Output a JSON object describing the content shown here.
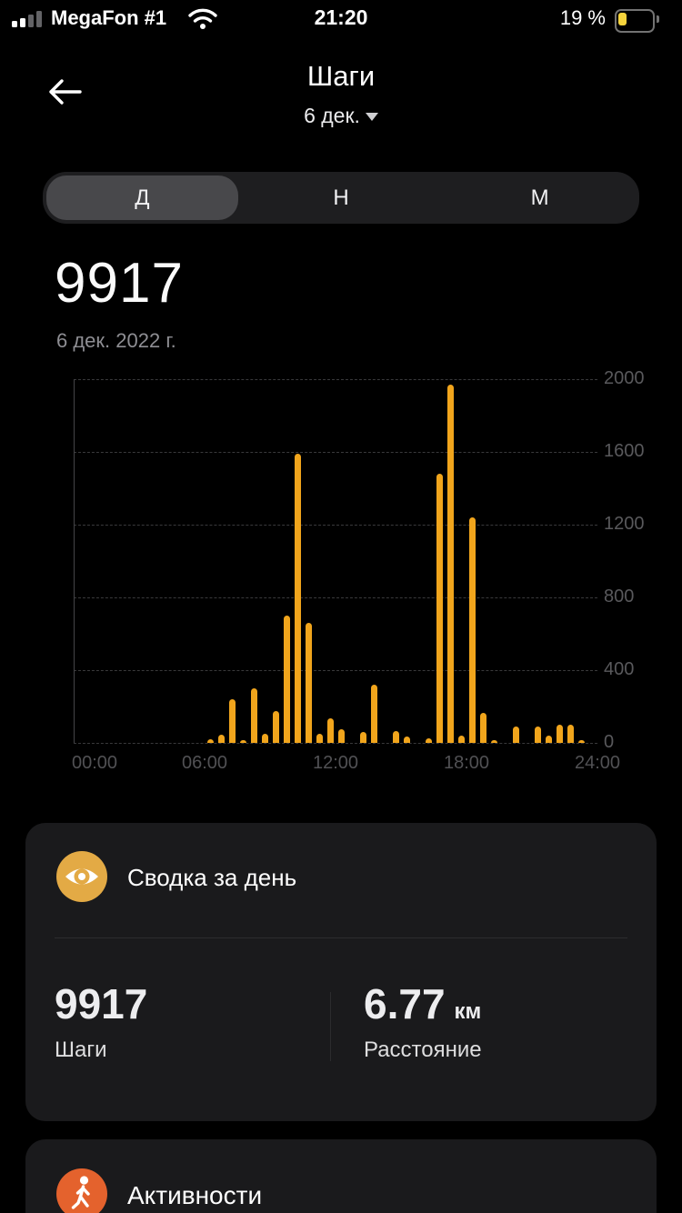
{
  "status_bar": {
    "carrier": "MegaFon #1",
    "time": "21:20",
    "battery_percent": "19 %",
    "signal_icon": "cellular-signal-2-of-4",
    "wifi_icon": "wifi-full",
    "battery_icon": "battery-low",
    "battery_fill_color": "#F5D33C"
  },
  "header": {
    "back_icon": "back-arrow",
    "title": "Шаги",
    "date_selector": "6 дек.",
    "caret_icon": "chevron-down"
  },
  "period_tabs": {
    "options": [
      {
        "label": "Д",
        "selected": true
      },
      {
        "label": "Н",
        "selected": false
      },
      {
        "label": "М",
        "selected": false
      }
    ]
  },
  "summary_top": {
    "steps": "9917",
    "date": "6 дек. 2022 г."
  },
  "chart_data": {
    "type": "bar",
    "title": "Шаги за день (steps per 30-min interval)",
    "bar_color": "#F1A51C",
    "x_axis": {
      "ticks": [
        "00:00",
        "06:00",
        "12:00",
        "18:00",
        "24:00"
      ],
      "range_hours": [
        0,
        24
      ]
    },
    "y_axis": {
      "ticks": [
        2000,
        1600,
        1200,
        800,
        400,
        0
      ],
      "lim": [
        0,
        2000
      ],
      "grid": "dashed"
    },
    "bars": [
      {
        "hour": 6.0,
        "steps": 20
      },
      {
        "hour": 6.5,
        "steps": 45
      },
      {
        "hour": 7.0,
        "steps": 240
      },
      {
        "hour": 7.5,
        "steps": 15
      },
      {
        "hour": 8.0,
        "steps": 300
      },
      {
        "hour": 8.5,
        "steps": 50
      },
      {
        "hour": 9.0,
        "steps": 175
      },
      {
        "hour": 9.5,
        "steps": 700
      },
      {
        "hour": 10.0,
        "steps": 1590
      },
      {
        "hour": 10.5,
        "steps": 660
      },
      {
        "hour": 11.0,
        "steps": 50
      },
      {
        "hour": 11.5,
        "steps": 135
      },
      {
        "hour": 12.0,
        "steps": 75
      },
      {
        "hour": 13.0,
        "steps": 60
      },
      {
        "hour": 13.5,
        "steps": 320
      },
      {
        "hour": 14.5,
        "steps": 65
      },
      {
        "hour": 15.0,
        "steps": 35
      },
      {
        "hour": 16.0,
        "steps": 25
      },
      {
        "hour": 16.5,
        "steps": 1480
      },
      {
        "hour": 17.0,
        "steps": 1970
      },
      {
        "hour": 17.5,
        "steps": 40
      },
      {
        "hour": 18.0,
        "steps": 1240
      },
      {
        "hour": 18.5,
        "steps": 165
      },
      {
        "hour": 19.0,
        "steps": 15
      },
      {
        "hour": 20.0,
        "steps": 90
      },
      {
        "hour": 21.0,
        "steps": 90
      },
      {
        "hour": 21.5,
        "steps": 40
      },
      {
        "hour": 22.0,
        "steps": 100
      },
      {
        "hour": 22.5,
        "steps": 100
      },
      {
        "hour": 23.0,
        "steps": 10
      }
    ]
  },
  "day_summary_card": {
    "icon": "eye-icon",
    "icon_bg": "#E3AA45",
    "title": "Сводка за день",
    "stats": [
      {
        "value": "9917",
        "unit": "",
        "label": "Шаги"
      },
      {
        "value": "6.77",
        "unit": "км",
        "label": "Расстояние"
      }
    ]
  },
  "activities_card": {
    "icon": "walking-person-icon",
    "icon_bg": "#E4622D",
    "title": "Активности"
  }
}
